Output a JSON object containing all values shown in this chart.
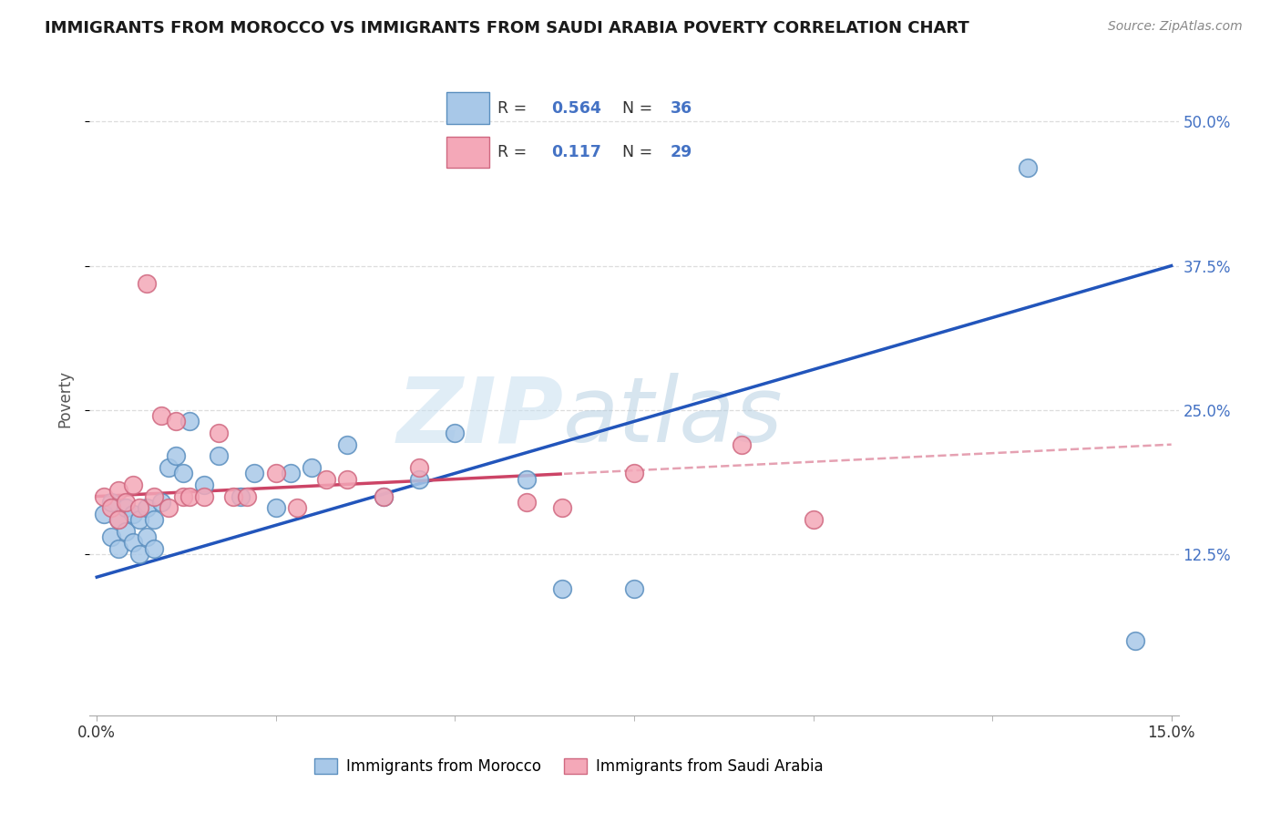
{
  "title": "IMMIGRANTS FROM MOROCCO VS IMMIGRANTS FROM SAUDI ARABIA POVERTY CORRELATION CHART",
  "source": "Source: ZipAtlas.com",
  "ylabel": "Poverty",
  "ytick_labels": [
    "12.5%",
    "25.0%",
    "37.5%",
    "50.0%"
  ],
  "ytick_values": [
    0.125,
    0.25,
    0.375,
    0.5
  ],
  "xlim": [
    -0.001,
    0.151
  ],
  "ylim": [
    -0.015,
    0.535
  ],
  "blue_dot_face": "#A8C8E8",
  "blue_dot_edge": "#5B8FBF",
  "pink_dot_face": "#F4A8B8",
  "pink_dot_edge": "#D06880",
  "blue_line": "#2255BB",
  "pink_line": "#CC4466",
  "grid_color": "#DDDDDD",
  "legend_r_color": "#4472C4",
  "legend_text_color": "#333333",
  "morocco_x": [
    0.001,
    0.002,
    0.002,
    0.003,
    0.003,
    0.004,
    0.004,
    0.005,
    0.005,
    0.006,
    0.006,
    0.007,
    0.007,
    0.008,
    0.008,
    0.009,
    0.01,
    0.011,
    0.012,
    0.013,
    0.015,
    0.017,
    0.02,
    0.022,
    0.025,
    0.027,
    0.03,
    0.035,
    0.04,
    0.045,
    0.05,
    0.06,
    0.065,
    0.075,
    0.13,
    0.145
  ],
  "morocco_y": [
    0.16,
    0.14,
    0.17,
    0.13,
    0.155,
    0.145,
    0.165,
    0.135,
    0.16,
    0.125,
    0.155,
    0.14,
    0.165,
    0.13,
    0.155,
    0.17,
    0.2,
    0.21,
    0.195,
    0.24,
    0.185,
    0.21,
    0.175,
    0.195,
    0.165,
    0.195,
    0.2,
    0.22,
    0.175,
    0.19,
    0.23,
    0.19,
    0.095,
    0.095,
    0.46,
    0.05
  ],
  "saudi_x": [
    0.001,
    0.002,
    0.003,
    0.003,
    0.004,
    0.005,
    0.006,
    0.007,
    0.008,
    0.009,
    0.01,
    0.011,
    0.012,
    0.013,
    0.015,
    0.017,
    0.019,
    0.021,
    0.025,
    0.028,
    0.032,
    0.035,
    0.04,
    0.045,
    0.06,
    0.065,
    0.075,
    0.09,
    0.1
  ],
  "saudi_y": [
    0.175,
    0.165,
    0.155,
    0.18,
    0.17,
    0.185,
    0.165,
    0.36,
    0.175,
    0.245,
    0.165,
    0.24,
    0.175,
    0.175,
    0.175,
    0.23,
    0.175,
    0.175,
    0.195,
    0.165,
    0.19,
    0.19,
    0.175,
    0.2,
    0.17,
    0.165,
    0.195,
    0.22,
    0.155
  ]
}
